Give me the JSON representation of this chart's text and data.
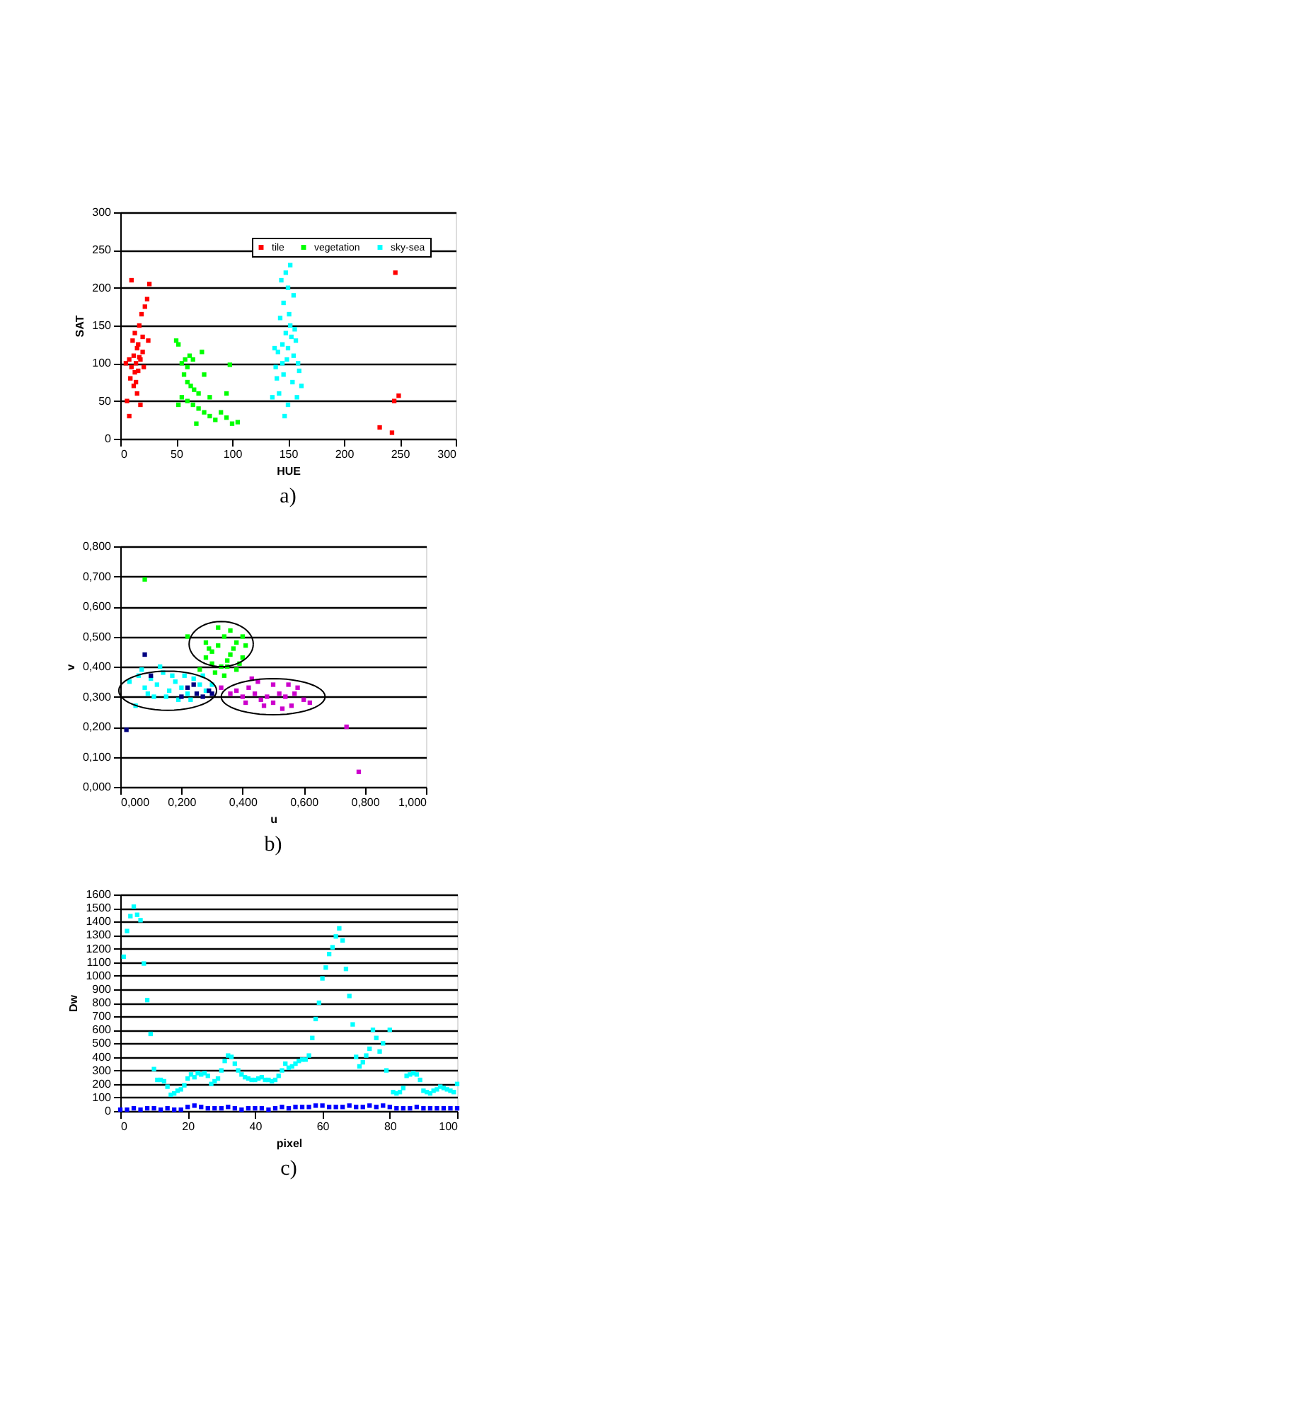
{
  "chart_data": [
    {
      "type": "scatter",
      "xlabel": "HUE",
      "ylabel": "SAT",
      "xlim": [
        0,
        300
      ],
      "ylim": [
        0,
        300
      ],
      "xticks": [
        0,
        50,
        100,
        150,
        200,
        250,
        300
      ],
      "yticks": [
        0,
        50,
        100,
        150,
        200,
        250,
        300
      ],
      "grid": "y",
      "legend": "top right",
      "marker": "square",
      "annotations": [
        "a)"
      ],
      "series": [
        {
          "name": "tile",
          "color": "#ff0000",
          "x": [
            8,
            10,
            12,
            14,
            15,
            16,
            18,
            20,
            11,
            13,
            17,
            19,
            22,
            24,
            9,
            12,
            15,
            6,
            8,
            18,
            14,
            16,
            20,
            25,
            10,
            26,
            5,
            21,
            13,
            17,
            232,
            243,
            245,
            249,
            246
          ],
          "values": [
            105,
            95,
            110,
            100,
            120,
            90,
            105,
            115,
            130,
            140,
            150,
            165,
            175,
            185,
            80,
            70,
            60,
            50,
            30,
            45,
            75,
            125,
            135,
            130,
            210,
            205,
            100,
            95,
            88,
            108,
            15,
            8,
            50,
            57,
            220
          ]
        },
        {
          "name": "vegetation",
          "color": "#00ff00",
          "x": [
            50,
            52,
            55,
            58,
            60,
            62,
            65,
            57,
            60,
            63,
            66,
            70,
            55,
            60,
            65,
            70,
            75,
            80,
            85,
            90,
            95,
            100,
            105,
            68,
            73,
            95,
            98,
            80,
            75,
            52
          ],
          "values": [
            130,
            125,
            100,
            105,
            95,
            110,
            105,
            85,
            75,
            70,
            65,
            60,
            55,
            50,
            45,
            40,
            35,
            30,
            25,
            35,
            28,
            20,
            22,
            20,
            115,
            60,
            98,
            55,
            85,
            45
          ]
        },
        {
          "name": "sky-sea",
          "color": "#00ffff",
          "x": [
            140,
            145,
            150,
            155,
            148,
            152,
            143,
            157,
            146,
            150,
            148,
            152,
            144,
            155,
            139,
            160,
            142,
            158,
            150,
            147,
            136,
            162,
            145,
            153,
            149,
            141,
            156,
            151,
            138,
            159,
            146,
            154
          ],
          "values": [
            80,
            100,
            120,
            110,
            140,
            150,
            160,
            130,
            180,
            200,
            220,
            230,
            210,
            190,
            95,
            90,
            60,
            55,
            45,
            30,
            55,
            70,
            125,
            135,
            105,
            115,
            145,
            165,
            120,
            100,
            85,
            75
          ]
        }
      ]
    },
    {
      "type": "scatter",
      "xlabel": "u",
      "ylabel": "v",
      "xlim": [
        0,
        1
      ],
      "ylim": [
        0,
        0.8
      ],
      "xticks": [
        {
          "value": 0,
          "label": "0,000"
        },
        {
          "value": 0.2,
          "label": "0,200"
        },
        {
          "value": 0.4,
          "label": "0,400"
        },
        {
          "value": 0.6,
          "label": "0,600"
        },
        {
          "value": 0.8,
          "label": "0,800"
        },
        {
          "value": 1,
          "label": "1,000"
        }
      ],
      "yticks": [
        {
          "value": 0,
          "label": "0,000"
        },
        {
          "value": 0.1,
          "label": "0,100"
        },
        {
          "value": 0.2,
          "label": "0,200"
        },
        {
          "value": 0.3,
          "label": "0,300"
        },
        {
          "value": 0.4,
          "label": "0,400"
        },
        {
          "value": 0.5,
          "label": "0,500"
        },
        {
          "value": 0.6,
          "label": "0,600"
        },
        {
          "value": 0.7,
          "label": "0,700"
        },
        {
          "value": 0.8,
          "label": "0,800"
        }
      ],
      "grid": "y",
      "marker": "square",
      "annotations": [
        "b)"
      ],
      "series": [
        {
          "color": "#00ffff",
          "x": [
            0.03,
            0.06,
            0.08,
            0.1,
            0.12,
            0.14,
            0.16,
            0.18,
            0.2,
            0.22,
            0.24,
            0.26,
            0.28,
            0.11,
            0.15,
            0.19,
            0.07,
            0.13,
            0.09,
            0.17,
            0.21,
            0.05,
            0.3,
            0.23,
            0.27
          ],
          "values": [
            0.35,
            0.37,
            0.33,
            0.36,
            0.34,
            0.38,
            0.32,
            0.35,
            0.33,
            0.31,
            0.36,
            0.34,
            0.32,
            0.3,
            0.3,
            0.29,
            0.39,
            0.4,
            0.31,
            0.37,
            0.37,
            0.27,
            0.34,
            0.29,
            0.37
          ]
        },
        {
          "color": "#000080",
          "x": [
            0.08,
            0.02,
            0.25,
            0.27,
            0.22,
            0.29,
            0.2,
            0.1,
            0.3,
            0.24
          ],
          "values": [
            0.44,
            0.19,
            0.31,
            0.3,
            0.33,
            0.32,
            0.3,
            0.37,
            0.31,
            0.34
          ]
        },
        {
          "color": "#00ff00",
          "x": [
            0.08,
            0.22,
            0.28,
            0.3,
            0.32,
            0.34,
            0.36,
            0.38,
            0.4,
            0.3,
            0.33,
            0.35,
            0.37,
            0.39,
            0.31,
            0.34,
            0.28,
            0.26,
            0.36,
            0.32,
            0.41,
            0.29,
            0.35,
            0.38,
            0.4
          ],
          "values": [
            0.69,
            0.5,
            0.48,
            0.45,
            0.47,
            0.5,
            0.44,
            0.48,
            0.43,
            0.41,
            0.4,
            0.42,
            0.46,
            0.41,
            0.38,
            0.37,
            0.43,
            0.39,
            0.52,
            0.53,
            0.47,
            0.46,
            0.4,
            0.39,
            0.5
          ]
        },
        {
          "color": "#cc00cc",
          "x": [
            0.33,
            0.36,
            0.38,
            0.4,
            0.42,
            0.44,
            0.46,
            0.48,
            0.5,
            0.52,
            0.54,
            0.56,
            0.58,
            0.6,
            0.45,
            0.5,
            0.55,
            0.62,
            0.47,
            0.53,
            0.41,
            0.57,
            0.43,
            0.78,
            0.74
          ],
          "values": [
            0.33,
            0.31,
            0.32,
            0.3,
            0.33,
            0.31,
            0.29,
            0.3,
            0.28,
            0.31,
            0.3,
            0.27,
            0.33,
            0.29,
            0.35,
            0.34,
            0.34,
            0.28,
            0.27,
            0.26,
            0.28,
            0.31,
            0.36,
            0.05,
            0.2
          ]
        }
      ]
    },
    {
      "type": "scatter",
      "xlabel": "pixel",
      "ylabel": "Dw",
      "xlim": [
        0,
        100
      ],
      "ylim": [
        0,
        1600
      ],
      "xticks": [
        0,
        20,
        40,
        60,
        80,
        100
      ],
      "yticks": [
        0,
        100,
        200,
        300,
        400,
        500,
        600,
        700,
        800,
        900,
        1000,
        1100,
        1200,
        1300,
        1400,
        1500,
        1600
      ],
      "grid": "y",
      "marker": "square",
      "annotations": [
        "c)"
      ],
      "series": [
        {
          "color": "#00ffff",
          "x": [
            1,
            2,
            3,
            4,
            5,
            6,
            7,
            8,
            9,
            10,
            11,
            12,
            13,
            14,
            15,
            16,
            17,
            18,
            19,
            20,
            21,
            22,
            23,
            24,
            25,
            26,
            27,
            28,
            29,
            30,
            31,
            32,
            33,
            34,
            35,
            36,
            37,
            38,
            39,
            40,
            41,
            42,
            43,
            44,
            45,
            46,
            47,
            48,
            49,
            50,
            51,
            52,
            53,
            54,
            55,
            56,
            57,
            58,
            59,
            60,
            61,
            62,
            63,
            64,
            65,
            66,
            67,
            68,
            69,
            70,
            71,
            72,
            73,
            74,
            75,
            76,
            77,
            78,
            79,
            80,
            81,
            82,
            83,
            84,
            85,
            86,
            87,
            88,
            89,
            90,
            91,
            92,
            93,
            94,
            95,
            96,
            97,
            98,
            99,
            100
          ],
          "values": [
            1140,
            1330,
            1440,
            1510,
            1450,
            1410,
            1090,
            820,
            570,
            310,
            230,
            230,
            220,
            180,
            120,
            130,
            150,
            160,
            190,
            240,
            270,
            250,
            280,
            270,
            280,
            260,
            200,
            220,
            240,
            300,
            370,
            410,
            400,
            350,
            300,
            270,
            250,
            240,
            230,
            230,
            240,
            250,
            230,
            230,
            220,
            230,
            260,
            300,
            350,
            320,
            330,
            350,
            370,
            380,
            380,
            410,
            540,
            680,
            800,
            980,
            1060,
            1160,
            1210,
            1290,
            1350,
            1260,
            1050,
            850,
            640,
            400,
            330,
            360,
            410,
            460,
            600,
            540,
            440,
            500,
            300,
            600,
            140,
            130,
            140,
            170,
            260,
            270,
            280,
            270,
            230,
            150,
            140,
            130,
            150,
            160,
            180,
            170,
            160,
            150,
            140,
            200
          ]
        },
        {
          "color": "#0000ff",
          "x": [
            0,
            2,
            4,
            6,
            8,
            10,
            12,
            14,
            16,
            18,
            20,
            22,
            24,
            26,
            28,
            30,
            32,
            34,
            36,
            38,
            40,
            42,
            44,
            46,
            48,
            50,
            52,
            54,
            56,
            58,
            60,
            62,
            64,
            66,
            68,
            70,
            72,
            74,
            76,
            78,
            80,
            82,
            84,
            86,
            88,
            90,
            92,
            94,
            96,
            98,
            100
          ],
          "values": [
            10,
            10,
            20,
            10,
            20,
            20,
            10,
            20,
            10,
            10,
            30,
            40,
            30,
            20,
            20,
            20,
            30,
            20,
            10,
            20,
            20,
            20,
            10,
            20,
            30,
            20,
            30,
            30,
            30,
            40,
            40,
            30,
            30,
            30,
            40,
            30,
            30,
            40,
            30,
            40,
            30,
            20,
            20,
            20,
            30,
            20,
            20,
            20,
            20,
            20,
            20
          ]
        }
      ]
    }
  ]
}
